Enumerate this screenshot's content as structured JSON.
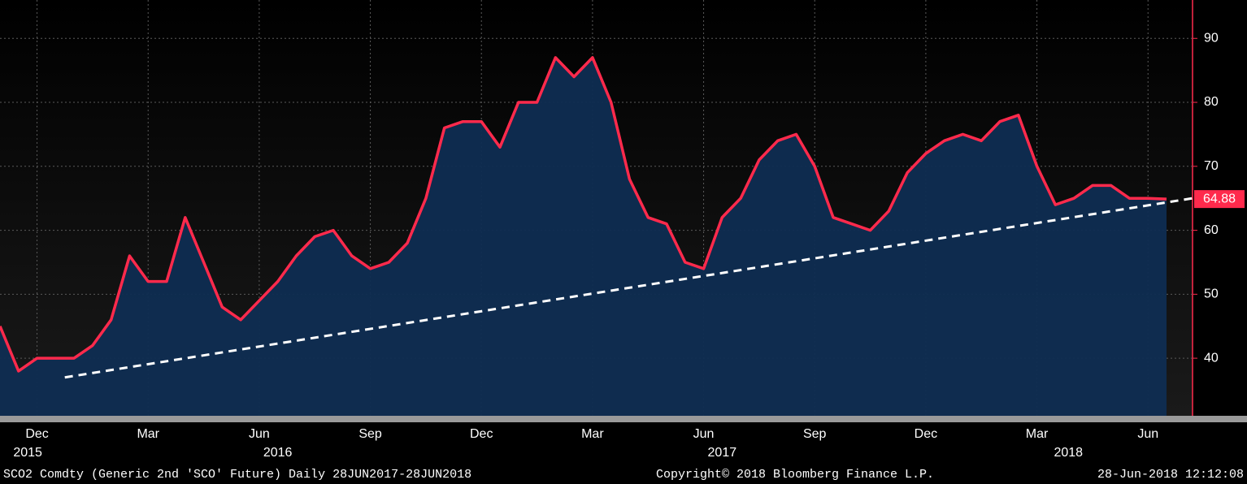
{
  "chart_data": {
    "type": "area-line",
    "categories": [
      null,
      null,
      "Dec",
      null,
      null,
      null,
      null,
      null,
      "Mar",
      null,
      null,
      null,
      null,
      null,
      "Jun",
      null,
      null,
      null,
      null,
      null,
      "Sep",
      null,
      null,
      null,
      null,
      null,
      "Dec",
      null,
      null,
      null,
      null,
      null,
      "Mar",
      null,
      null,
      null,
      null,
      null,
      "Jun",
      null,
      null,
      null,
      null,
      null,
      "Sep",
      null,
      null,
      null,
      null,
      null,
      "Dec",
      null,
      null,
      null,
      null,
      null,
      "Mar",
      null,
      null,
      null,
      null,
      null,
      "Jun",
      null
    ],
    "values": [
      45,
      38,
      40,
      40,
      40,
      42,
      46,
      56,
      52,
      52,
      62,
      55,
      48,
      46,
      49,
      52,
      56,
      59,
      60,
      56,
      54,
      55,
      58,
      65,
      76,
      77,
      77,
      73,
      80,
      80,
      87,
      84,
      87,
      80,
      68,
      62,
      61,
      55,
      54,
      62,
      65,
      71,
      74,
      75,
      70,
      62,
      61,
      60,
      63,
      69,
      72,
      74,
      75,
      74,
      77,
      78,
      70,
      64,
      65,
      67,
      67,
      65,
      65,
      64.88
    ],
    "color": "#ff2a4c",
    "area_color": "#0f2d52",
    "trend": {
      "x": [
        3.5,
        64.4
      ],
      "values": [
        37,
        65
      ],
      "color": "#ffffff"
    },
    "year_ticks": [
      {
        "value": 1.5,
        "label": "2015"
      },
      {
        "value": 15,
        "label": "2016"
      },
      {
        "value": 39,
        "label": "2017"
      },
      {
        "value": 57.7,
        "label": "2018"
      }
    ],
    "ylim": [
      31,
      96
    ],
    "yticks": [
      40,
      50,
      60,
      70,
      80,
      90
    ],
    "grid": true,
    "footer": {
      "left": "SCO2 Comdty (Generic 2nd 'SCO' Future)  Daily 28JUN2017-28JUN2018",
      "center": "Copyright© 2018 Bloomberg Finance L.P.",
      "right": "28-Jun-2018 12:12:08"
    }
  }
}
